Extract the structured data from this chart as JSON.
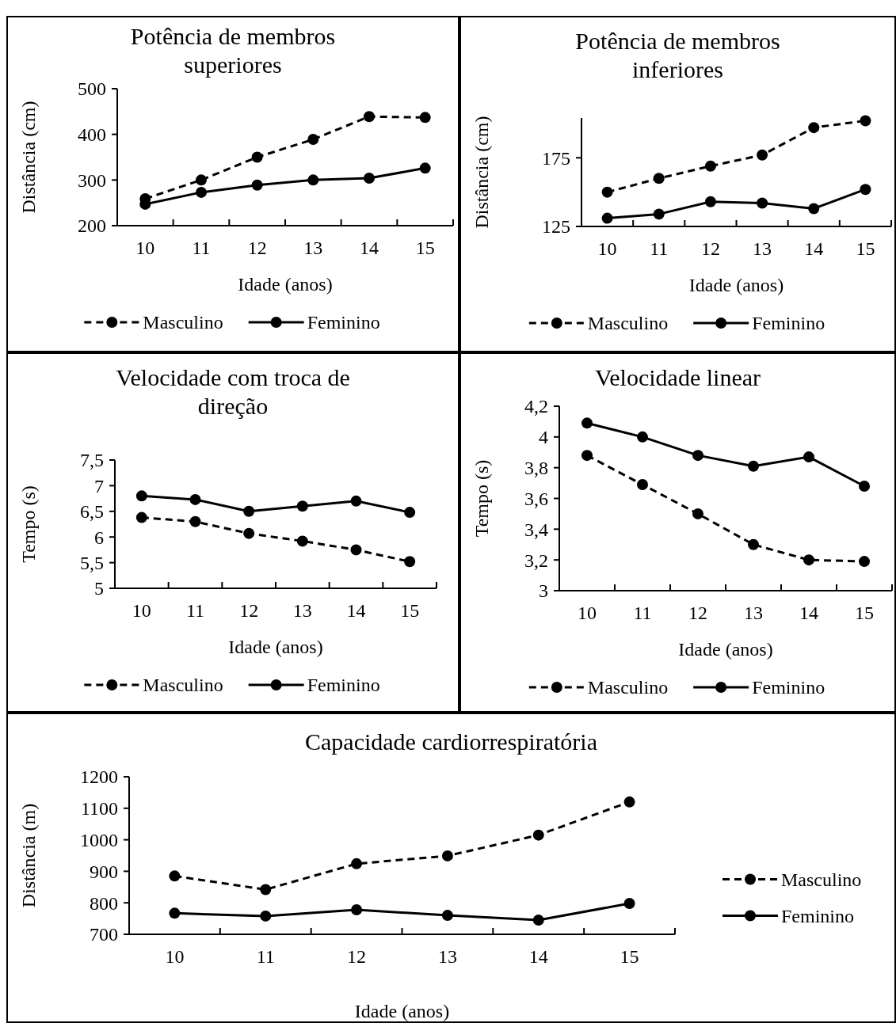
{
  "chart_data": [
    {
      "type": "line",
      "title": "Potência de membros superiores",
      "xlabel": "Idade (anos)",
      "ylabel": "Distância (cm)",
      "categories": [
        "10",
        "11",
        "12",
        "13",
        "14",
        "15"
      ],
      "ylim": [
        200,
        500
      ],
      "yticks": [
        200,
        300,
        400,
        500
      ],
      "legend": "bottom",
      "marker": "circle",
      "series": [
        {
          "name": "Masculino",
          "color": "#000000",
          "line_style": "dashed",
          "values": [
            259,
            300,
            350,
            389,
            439,
            437
          ]
        },
        {
          "name": "Feminino",
          "color": "#000000",
          "line_style": "solid",
          "values": [
            247,
            273,
            289,
            300,
            304,
            326
          ]
        }
      ]
    },
    {
      "type": "line",
      "title": "Potência de membros inferiores",
      "xlabel": "Idade (anos)",
      "ylabel": "Distância (cm)",
      "categories": [
        "10",
        "11",
        "12",
        "13",
        "14",
        "15"
      ],
      "ylim": [
        125,
        204
      ],
      "yticks": [
        125,
        175
      ],
      "legend": "bottom",
      "marker": "circle",
      "series": [
        {
          "name": "Masculino",
          "color": "#000000",
          "line_style": "dashed",
          "values": [
            150,
            160,
            169,
            177,
            197,
            202
          ]
        },
        {
          "name": "Feminino",
          "color": "#000000",
          "line_style": "solid",
          "values": [
            131,
            134,
            143,
            142,
            138,
            152
          ]
        }
      ]
    },
    {
      "type": "line",
      "title": "Velocidade com troca de direção",
      "xlabel": "Idade (anos)",
      "ylabel": "Tempo (s)",
      "categories": [
        "10",
        "11",
        "12",
        "13",
        "14",
        "15"
      ],
      "ylim": [
        5,
        7.5
      ],
      "yticks": [
        {
          "value": 5,
          "label": "5"
        },
        {
          "value": 5.5,
          "label": "5,5"
        },
        {
          "value": 6,
          "label": "6"
        },
        {
          "value": 6.5,
          "label": "6,5"
        },
        {
          "value": 7,
          "label": "7"
        },
        {
          "value": 7.5,
          "label": "7,5"
        }
      ],
      "legend": "bottom",
      "marker": "circle",
      "series": [
        {
          "name": "Masculino",
          "color": "#000000",
          "line_style": "dashed",
          "values": [
            6.38,
            6.3,
            6.07,
            5.92,
            5.75,
            5.52
          ]
        },
        {
          "name": "Feminino",
          "color": "#000000",
          "line_style": "solid",
          "values": [
            6.8,
            6.73,
            6.5,
            6.6,
            6.7,
            6.48
          ]
        }
      ]
    },
    {
      "type": "line",
      "title": "Velocidade linear",
      "xlabel": "Idade (anos)",
      "ylabel": "Tempo (s)",
      "categories": [
        "10",
        "11",
        "12",
        "13",
        "14",
        "15"
      ],
      "ylim": [
        3,
        4.2
      ],
      "yticks": [
        {
          "value": 3,
          "label": "3"
        },
        {
          "value": 3.2,
          "label": "3,2"
        },
        {
          "value": 3.4,
          "label": "3,4"
        },
        {
          "value": 3.6,
          "label": "3,6"
        },
        {
          "value": 3.8,
          "label": "3,8"
        },
        {
          "value": 4,
          "label": "4"
        },
        {
          "value": 4.2,
          "label": "4,2"
        }
      ],
      "legend": "bottom",
      "marker": "circle",
      "series": [
        {
          "name": "Masculino",
          "color": "#000000",
          "line_style": "dashed",
          "values": [
            3.88,
            3.69,
            3.5,
            3.3,
            3.2,
            3.19
          ]
        },
        {
          "name": "Feminino",
          "color": "#000000",
          "line_style": "solid",
          "values": [
            4.09,
            4.0,
            3.88,
            3.81,
            3.87,
            3.68
          ]
        }
      ]
    },
    {
      "type": "line",
      "title": "Capacidade cardiorrespiratória",
      "xlabel": "Idade (anos)",
      "ylabel": "Distância (m)",
      "categories": [
        "10",
        "11",
        "12",
        "13",
        "14",
        "15"
      ],
      "ylim": [
        700,
        1200
      ],
      "yticks": [
        700,
        800,
        900,
        1000,
        1100,
        1200
      ],
      "legend": "right",
      "marker": "circle",
      "series": [
        {
          "name": "Masculino",
          "color": "#000000",
          "line_style": "dashed",
          "values": [
            885,
            842,
            924,
            949,
            1015,
            1120
          ]
        },
        {
          "name": "Feminino",
          "color": "#000000",
          "line_style": "solid",
          "values": [
            767,
            758,
            778,
            760,
            745,
            798
          ]
        }
      ]
    }
  ]
}
